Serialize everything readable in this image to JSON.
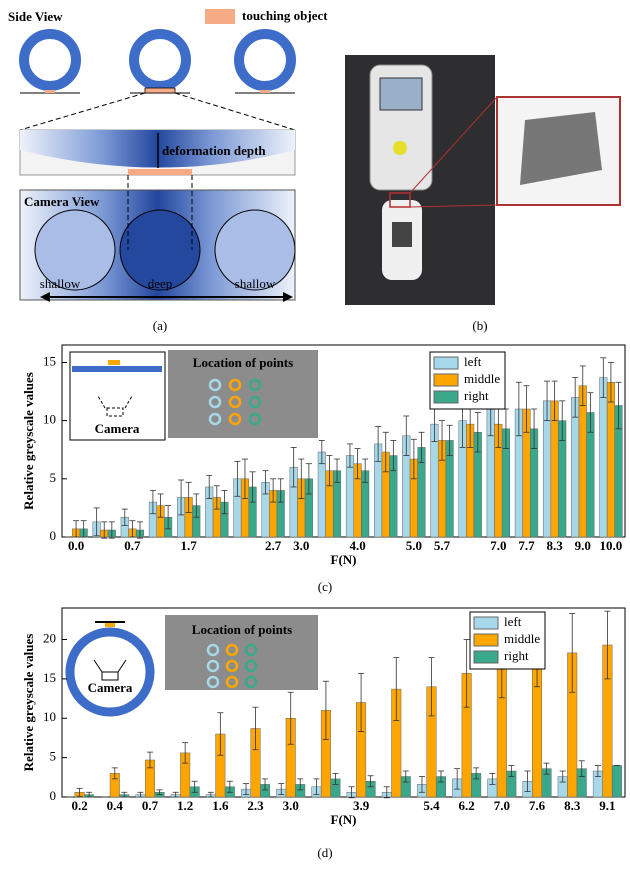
{
  "panel_a": {
    "side_view": "Side View",
    "legend_touch": "touching object",
    "deformation": "deformation depth",
    "camera_view": "Camera View",
    "shallow_left": "shallow",
    "deep": "deep",
    "shallow_right": "shallow",
    "label": "(a)"
  },
  "panel_b": {
    "label": "(b)"
  },
  "chart_data": [
    {
      "type": "bar",
      "panel_label": "(c)",
      "x_label": "F(N)",
      "y_label": "Relative greyscale values",
      "annotations": {
        "points": "Location of points",
        "camera": "Camera"
      },
      "categories": [
        "0.0",
        null,
        "0.7",
        null,
        "1.7",
        null,
        null,
        "2.7",
        "3.0",
        null,
        "4.0",
        null,
        "5.0",
        "5.7",
        null,
        "7.0",
        "7.7",
        "8.3",
        "9.0",
        "10.0"
      ],
      "series": [
        {
          "name": "left",
          "color": "#a6d8ea",
          "values": [
            0,
            1.3,
            1.7,
            3.0,
            3.4,
            4.3,
            5.0,
            4.7,
            6.0,
            7.3,
            7.0,
            8.0,
            8.7,
            9.7,
            10.0,
            11.0,
            11.0,
            11.7,
            12.0,
            13.7
          ],
          "errors": [
            0,
            1.2,
            0.7,
            1.0,
            1.5,
            1.0,
            1.5,
            1.0,
            1.7,
            1.0,
            1.0,
            1.5,
            1.7,
            1.5,
            2.3,
            2.3,
            2.3,
            1.7,
            1.7,
            1.7
          ]
        },
        {
          "name": "middle",
          "color": "#ffa500",
          "values": [
            0.7,
            0.6,
            0.7,
            2.7,
            3.4,
            3.4,
            5.0,
            4.0,
            5.0,
            5.7,
            6.3,
            7.3,
            6.7,
            8.3,
            9.7,
            9.7,
            11.0,
            11.7,
            13.0,
            13.3
          ],
          "errors": [
            0.7,
            0.7,
            0.7,
            1.0,
            1.3,
            1.0,
            1.7,
            1.0,
            1.7,
            1.3,
            1.3,
            1.7,
            1.7,
            1.7,
            2.0,
            2.0,
            2.0,
            1.7,
            1.7,
            1.7
          ]
        },
        {
          "name": "right",
          "color": "#3aa88a",
          "values": [
            0.7,
            0.6,
            0.6,
            1.7,
            2.7,
            3.0,
            4.3,
            4.0,
            5.0,
            5.7,
            5.7,
            7.0,
            7.7,
            8.3,
            9.0,
            9.3,
            9.3,
            10.0,
            10.7,
            11.3
          ],
          "errors": [
            0.7,
            0.7,
            0.7,
            1.0,
            1.0,
            1.0,
            1.3,
            1.0,
            1.3,
            1.0,
            1.0,
            1.3,
            1.3,
            1.3,
            1.7,
            1.7,
            1.7,
            1.7,
            1.7,
            2.0
          ]
        }
      ],
      "ylim": [
        0,
        16.5
      ],
      "yticks": [
        0,
        5,
        10,
        15
      ]
    },
    {
      "type": "bar",
      "panel_label": "(d)",
      "x_label": "F(N)",
      "y_label": "Relative greyscale values",
      "annotations": {
        "points": "Location of points",
        "camera": "Camera"
      },
      "categories": [
        "0.2",
        "0.4",
        "0.7",
        "1.2",
        "1.6",
        "2.3",
        "3.0",
        null,
        "3.9",
        null,
        "5.4",
        "6.2",
        "7.0",
        "7.6",
        "8.3",
        "9.1"
      ],
      "series": [
        {
          "name": "left",
          "color": "#a6d8ea",
          "values": [
            0,
            0,
            0.3,
            0.3,
            0.3,
            1.0,
            1.0,
            1.3,
            0.6,
            0.6,
            1.6,
            2.3,
            2.3,
            2.0,
            2.6,
            3.3
          ],
          "errors": [
            0,
            0,
            0.3,
            0.3,
            0.3,
            0.7,
            0.7,
            1.0,
            0.7,
            0.7,
            1.0,
            1.3,
            0.7,
            1.3,
            0.7,
            0.7
          ]
        },
        {
          "name": "middle",
          "color": "#ffa500",
          "values": [
            0.6,
            3.0,
            4.7,
            5.6,
            8.0,
            8.7,
            10.0,
            11.0,
            12.0,
            13.7,
            14.0,
            15.7,
            16.3,
            17.7,
            18.3,
            19.3
          ],
          "errors": [
            0.5,
            0.7,
            1.0,
            1.3,
            2.7,
            2.7,
            3.3,
            3.7,
            3.7,
            4.0,
            3.7,
            4.3,
            3.7,
            3.7,
            5.0,
            4.3
          ]
        },
        {
          "name": "right",
          "color": "#3aa88a",
          "values": [
            0.3,
            0.3,
            0.6,
            1.3,
            1.3,
            1.6,
            1.6,
            2.3,
            2.0,
            2.6,
            2.6,
            3.0,
            3.3,
            3.6,
            3.6,
            4.0
          ],
          "errors": [
            0.3,
            0.3,
            0.3,
            0.7,
            0.7,
            0.7,
            0.7,
            0.7,
            0.7,
            0.7,
            0.7,
            0.7,
            0.7,
            0.7,
            1.0,
            0
          ]
        }
      ],
      "ylim": [
        0,
        24
      ],
      "yticks": [
        0,
        5,
        10,
        15,
        20
      ]
    }
  ]
}
